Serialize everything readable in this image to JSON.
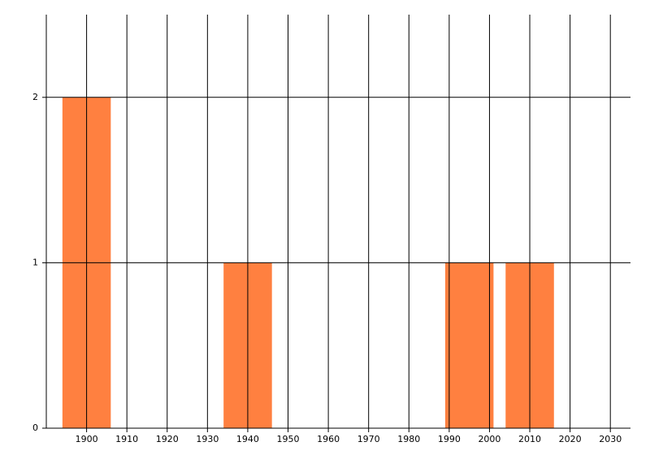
{
  "chart_data": {
    "type": "bar",
    "x": [
      1900,
      1940,
      1995,
      2010
    ],
    "values": [
      2,
      1,
      1,
      1
    ],
    "color": "#ff8040",
    "xlim": [
      1890,
      2035
    ],
    "xticks": [
      1900,
      1910,
      1920,
      1930,
      1940,
      1950,
      1960,
      1970,
      1980,
      1990,
      2000,
      2010,
      2020,
      2030
    ],
    "ylim": [
      0,
      2.5
    ],
    "yticks": [
      0,
      1,
      2
    ],
    "grid": true
  }
}
